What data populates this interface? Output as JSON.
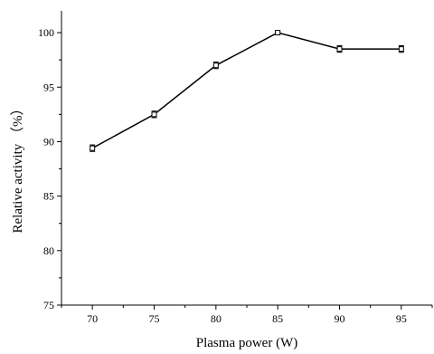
{
  "chart_data": {
    "type": "line",
    "xlabel": "Plasma power (W)",
    "ylabel": "Relative activity （%）",
    "x": [
      70,
      75,
      80,
      85,
      90,
      95
    ],
    "series": [
      {
        "values": [
          89.4,
          92.5,
          97.0,
          100.0,
          98.5,
          98.5
        ],
        "errors": [
          0.3,
          0.3,
          0.3,
          0.1,
          0.3,
          0.3
        ]
      }
    ],
    "xlim": [
      67.5,
      97.5
    ],
    "ylim": [
      75,
      102
    ],
    "xticks": [
      70,
      75,
      80,
      85,
      90,
      95
    ],
    "yticks": [
      75,
      80,
      85,
      90,
      95,
      100
    ],
    "grid": false,
    "legend": "none"
  }
}
